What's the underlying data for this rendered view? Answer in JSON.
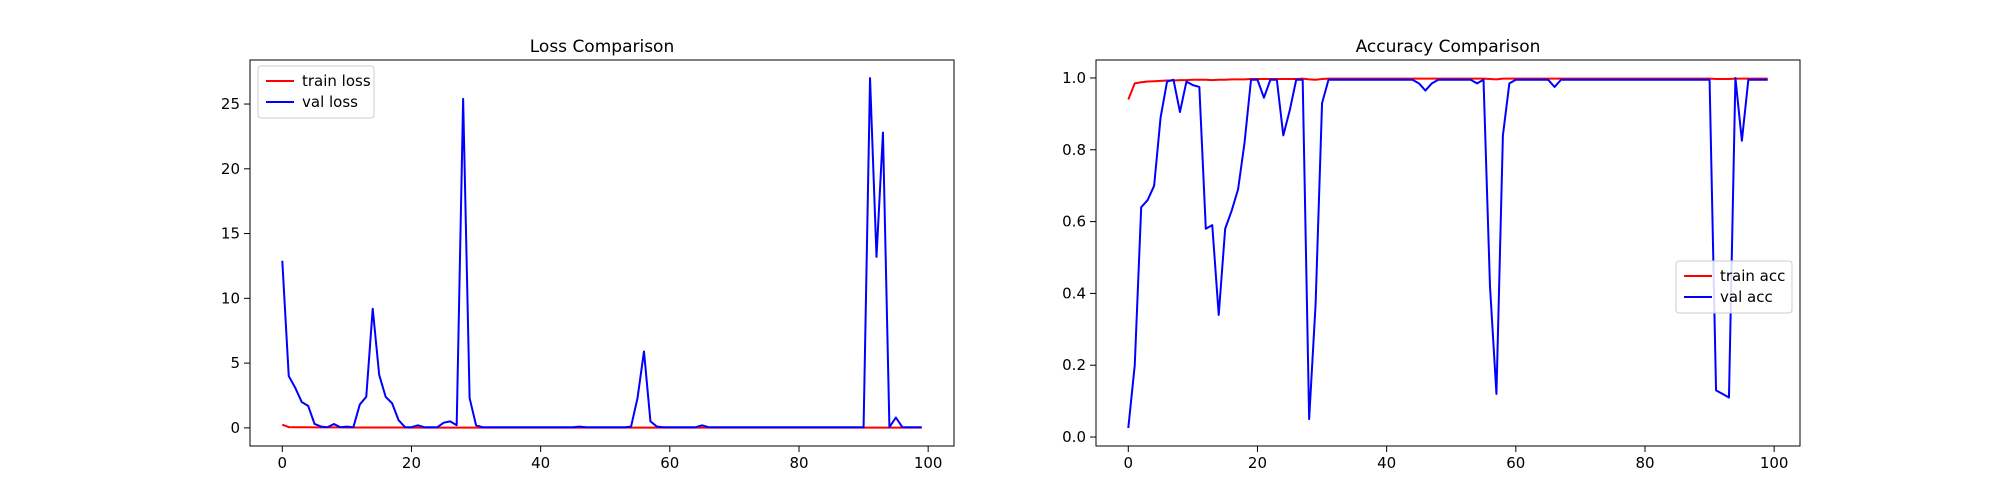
{
  "chart_data": [
    {
      "type": "line",
      "title": "Loss Comparison",
      "xlabel": "",
      "ylabel": "",
      "xlim": [
        -5,
        104
      ],
      "ylim": [
        -1.4,
        28.4
      ],
      "xticks": [
        0,
        20,
        40,
        60,
        80,
        100
      ],
      "yticks": [
        0,
        5,
        10,
        15,
        20,
        25
      ],
      "grid": false,
      "legend_position": "upper-left",
      "x": [
        0,
        1,
        2,
        3,
        4,
        5,
        6,
        7,
        8,
        9,
        10,
        11,
        12,
        13,
        14,
        15,
        16,
        17,
        18,
        19,
        20,
        21,
        22,
        23,
        24,
        25,
        26,
        27,
        28,
        29,
        30,
        31,
        32,
        33,
        34,
        35,
        36,
        37,
        38,
        39,
        40,
        41,
        42,
        43,
        44,
        45,
        46,
        47,
        48,
        49,
        50,
        51,
        52,
        53,
        54,
        55,
        56,
        57,
        58,
        59,
        60,
        61,
        62,
        63,
        64,
        65,
        66,
        67,
        68,
        69,
        70,
        71,
        72,
        73,
        74,
        75,
        76,
        77,
        78,
        79,
        80,
        81,
        82,
        83,
        84,
        85,
        86,
        87,
        88,
        89,
        90,
        91,
        92,
        93,
        94,
        95,
        96,
        97,
        98,
        99
      ],
      "series": [
        {
          "name": "train loss",
          "color": "#ff0000",
          "values": [
            0.25,
            0.06,
            0.05,
            0.05,
            0.05,
            0.04,
            0.04,
            0.04,
            0.04,
            0.04,
            0.03,
            0.03,
            0.03,
            0.03,
            0.03,
            0.03,
            0.03,
            0.03,
            0.03,
            0.03,
            0.02,
            0.02,
            0.02,
            0.02,
            0.02,
            0.02,
            0.02,
            0.02,
            0.02,
            0.02,
            0.02,
            0.02,
            0.02,
            0.02,
            0.02,
            0.02,
            0.02,
            0.02,
            0.02,
            0.02,
            0.02,
            0.02,
            0.02,
            0.02,
            0.02,
            0.02,
            0.02,
            0.02,
            0.02,
            0.02,
            0.02,
            0.02,
            0.02,
            0.02,
            0.02,
            0.02,
            0.02,
            0.02,
            0.02,
            0.02,
            0.02,
            0.02,
            0.02,
            0.02,
            0.02,
            0.02,
            0.02,
            0.02,
            0.02,
            0.02,
            0.02,
            0.02,
            0.02,
            0.02,
            0.02,
            0.02,
            0.02,
            0.02,
            0.02,
            0.02,
            0.02,
            0.02,
            0.02,
            0.02,
            0.02,
            0.02,
            0.02,
            0.02,
            0.02,
            0.02,
            0.02,
            0.02,
            0.02,
            0.02,
            0.02,
            0.02,
            0.02,
            0.02,
            0.02,
            0.02
          ]
        },
        {
          "name": "val loss",
          "color": "#0000ff",
          "values": [
            12.9,
            4.0,
            3.1,
            2.0,
            1.7,
            0.3,
            0.1,
            0.05,
            0.3,
            0.05,
            0.1,
            0.05,
            1.8,
            2.4,
            9.2,
            4.1,
            2.4,
            1.9,
            0.6,
            0.05,
            0.05,
            0.2,
            0.05,
            0.05,
            0.05,
            0.4,
            0.5,
            0.2,
            25.4,
            2.3,
            0.2,
            0.05,
            0.05,
            0.05,
            0.05,
            0.05,
            0.05,
            0.05,
            0.05,
            0.05,
            0.05,
            0.05,
            0.05,
            0.05,
            0.05,
            0.05,
            0.1,
            0.05,
            0.05,
            0.05,
            0.05,
            0.05,
            0.05,
            0.05,
            0.1,
            2.3,
            5.9,
            0.5,
            0.1,
            0.05,
            0.05,
            0.05,
            0.05,
            0.05,
            0.05,
            0.2,
            0.05,
            0.05,
            0.05,
            0.05,
            0.05,
            0.05,
            0.05,
            0.05,
            0.05,
            0.05,
            0.05,
            0.05,
            0.05,
            0.05,
            0.05,
            0.05,
            0.05,
            0.05,
            0.05,
            0.05,
            0.05,
            0.05,
            0.05,
            0.05,
            0.05,
            27.0,
            13.2,
            22.8,
            0.05,
            0.8,
            0.05,
            0.05,
            0.05,
            0.05
          ]
        }
      ]
    },
    {
      "type": "line",
      "title": "Accuracy Comparison",
      "xlabel": "",
      "ylabel": "",
      "xlim": [
        -5,
        104
      ],
      "ylim": [
        -0.025,
        1.05
      ],
      "xticks": [
        0,
        20,
        40,
        60,
        80,
        100
      ],
      "yticks": [
        0.0,
        0.2,
        0.4,
        0.6,
        0.8,
        1.0
      ],
      "grid": false,
      "legend_position": "center-right",
      "x": [
        0,
        1,
        2,
        3,
        4,
        5,
        6,
        7,
        8,
        9,
        10,
        11,
        12,
        13,
        14,
        15,
        16,
        17,
        18,
        19,
        20,
        21,
        22,
        23,
        24,
        25,
        26,
        27,
        28,
        29,
        30,
        31,
        32,
        33,
        34,
        35,
        36,
        37,
        38,
        39,
        40,
        41,
        42,
        43,
        44,
        45,
        46,
        47,
        48,
        49,
        50,
        51,
        52,
        53,
        54,
        55,
        56,
        57,
        58,
        59,
        60,
        61,
        62,
        63,
        64,
        65,
        66,
        67,
        68,
        69,
        70,
        71,
        72,
        73,
        74,
        75,
        76,
        77,
        78,
        79,
        80,
        81,
        82,
        83,
        84,
        85,
        86,
        87,
        88,
        89,
        90,
        91,
        92,
        93,
        94,
        95,
        96,
        97,
        98,
        99
      ],
      "series": [
        {
          "name": "train acc",
          "color": "#ff0000",
          "values": [
            0.94,
            0.985,
            0.988,
            0.99,
            0.991,
            0.992,
            0.993,
            0.993,
            0.994,
            0.994,
            0.995,
            0.995,
            0.995,
            0.994,
            0.995,
            0.995,
            0.996,
            0.996,
            0.996,
            0.997,
            0.997,
            0.997,
            0.997,
            0.997,
            0.997,
            0.997,
            0.997,
            0.998,
            0.996,
            0.995,
            0.997,
            0.998,
            0.998,
            0.998,
            0.998,
            0.998,
            0.998,
            0.998,
            0.998,
            0.998,
            0.998,
            0.998,
            0.998,
            0.998,
            0.998,
            0.998,
            0.998,
            0.998,
            0.998,
            0.998,
            0.998,
            0.998,
            0.998,
            0.998,
            0.998,
            0.998,
            0.997,
            0.996,
            0.998,
            0.998,
            0.998,
            0.998,
            0.998,
            0.998,
            0.998,
            0.998,
            0.998,
            0.998,
            0.998,
            0.998,
            0.998,
            0.998,
            0.998,
            0.998,
            0.998,
            0.998,
            0.998,
            0.998,
            0.998,
            0.998,
            0.998,
            0.998,
            0.998,
            0.998,
            0.998,
            0.998,
            0.998,
            0.998,
            0.998,
            0.998,
            0.998,
            0.997,
            0.997,
            0.997,
            0.998,
            0.998,
            0.998,
            0.998,
            0.998,
            0.998
          ]
        },
        {
          "name": "val acc",
          "color": "#0000ff",
          "values": [
            0.025,
            0.2,
            0.64,
            0.66,
            0.7,
            0.89,
            0.99,
            0.995,
            0.905,
            0.99,
            0.98,
            0.975,
            0.58,
            0.59,
            0.34,
            0.58,
            0.63,
            0.69,
            0.82,
            0.995,
            0.995,
            0.945,
            0.995,
            0.995,
            0.84,
            0.91,
            0.995,
            0.995,
            0.05,
            0.37,
            0.93,
            0.995,
            0.995,
            0.995,
            0.995,
            0.995,
            0.995,
            0.995,
            0.995,
            0.995,
            0.995,
            0.995,
            0.995,
            0.995,
            0.995,
            0.985,
            0.965,
            0.985,
            0.995,
            0.995,
            0.995,
            0.995,
            0.995,
            0.995,
            0.985,
            0.995,
            0.42,
            0.12,
            0.84,
            0.985,
            0.995,
            0.995,
            0.995,
            0.995,
            0.995,
            0.995,
            0.975,
            0.995,
            0.995,
            0.995,
            0.995,
            0.995,
            0.995,
            0.995,
            0.995,
            0.995,
            0.995,
            0.995,
            0.995,
            0.995,
            0.995,
            0.995,
            0.995,
            0.995,
            0.995,
            0.995,
            0.995,
            0.995,
            0.995,
            0.995,
            0.995,
            0.13,
            0.12,
            0.11,
            1.0,
            0.825,
            0.995,
            0.995,
            0.995,
            0.995
          ]
        }
      ]
    }
  ]
}
